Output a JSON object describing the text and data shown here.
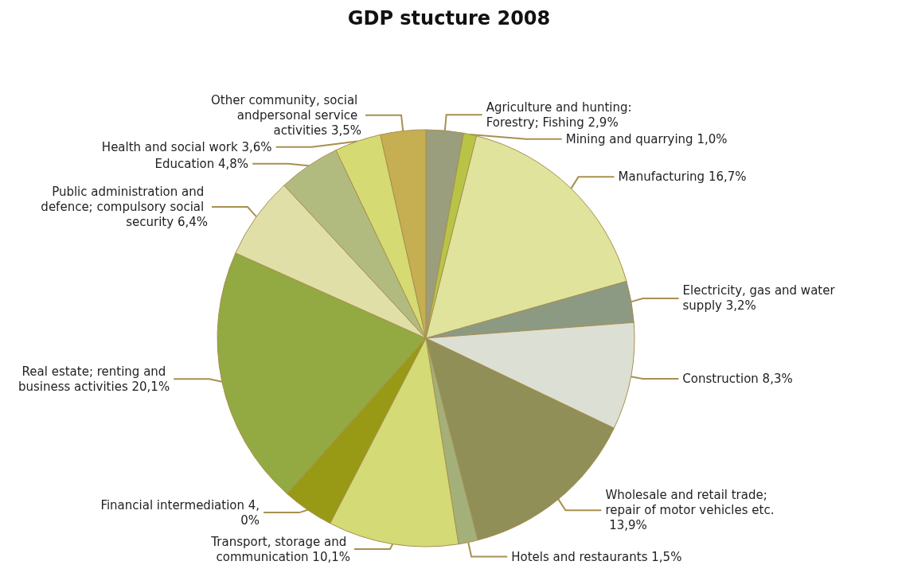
{
  "chart_data": {
    "type": "pie",
    "title": "GDP stucture 2008",
    "categories": [
      "Agriculture and hunting: Forestry; Fishing",
      "Mining and quarrying",
      "Manufacturing",
      "Electricity, gas and water supply",
      "Construction",
      "Wholesale and retail trade; repair of motor vehicles etc.",
      "Hotels and restaurants",
      "Transport, storage and communication",
      "Financial intermediation",
      "Real estate; renting and business activities",
      "Public administration and defence; compulsory social security",
      "Education",
      "Health and social work",
      "Other community, social andpersonal service activities"
    ],
    "values": [
      2.9,
      1.0,
      16.7,
      3.2,
      8.3,
      13.9,
      1.5,
      10.1,
      4.0,
      20.1,
      6.4,
      4.8,
      3.6,
      3.5
    ],
    "value_labels": [
      "2,9%",
      "1,0%",
      "16,7%",
      "3,2%",
      "8,3%",
      "13,9%",
      "1,5%",
      "10,1%",
      "4,0%",
      "20,1%",
      "6,4%",
      "4,8%",
      "3,6%",
      "3,5%"
    ],
    "colors": [
      "#9a9e7c",
      "#b8c446",
      "#e0e39c",
      "#8c9a84",
      "#dcdfd3",
      "#8f8f57",
      "#a3b07a",
      "#d4da75",
      "#989a15",
      "#93a942",
      "#e0dfa8",
      "#b2bb7f",
      "#d5da72",
      "#c6ae52"
    ],
    "legend": false
  }
}
